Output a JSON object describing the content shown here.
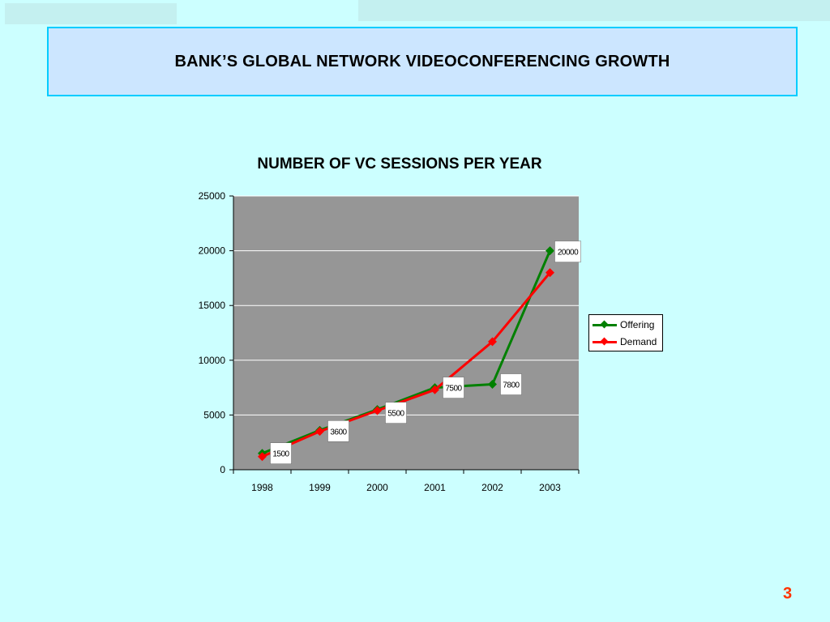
{
  "slide": {
    "title": "BANK’S GLOBAL NETWORK VIDEOCONFERENCING GROWTH",
    "page_number": "3"
  },
  "colors": {
    "background": "#ccffff",
    "title_box_fill": "#cce6ff",
    "title_box_border": "#00ccff",
    "plot_area": "#969696",
    "offering": "#008000",
    "demand": "#ff0000",
    "page_number": "#ff3300"
  },
  "chart_data": {
    "type": "line",
    "title": "NUMBER OF VC SESSIONS PER YEAR",
    "xlabel": "",
    "ylabel": "",
    "categories": [
      "1998",
      "1999",
      "2000",
      "2001",
      "2002",
      "2003"
    ],
    "ylim": [
      0,
      25000
    ],
    "yticks": [
      "0",
      "5000",
      "10000",
      "15000",
      "20000",
      "25000"
    ],
    "grid": true,
    "legend_position": "right",
    "series": [
      {
        "name": "Offering",
        "values": [
          1500,
          3600,
          5500,
          7500,
          7800,
          20000
        ],
        "color": "#008000"
      },
      {
        "name": "Demand",
        "values": [
          1200,
          3500,
          5400,
          7300,
          11700,
          18000
        ],
        "color": "#ff0000"
      }
    ],
    "data_labels": [
      {
        "category": "1998",
        "text": "1500"
      },
      {
        "category": "1999",
        "text": "3600"
      },
      {
        "category": "2000",
        "text": "5500"
      },
      {
        "category": "2001",
        "text": "7500"
      },
      {
        "category": "2002",
        "text": "7800"
      },
      {
        "category": "2003",
        "text": "20000"
      }
    ]
  }
}
